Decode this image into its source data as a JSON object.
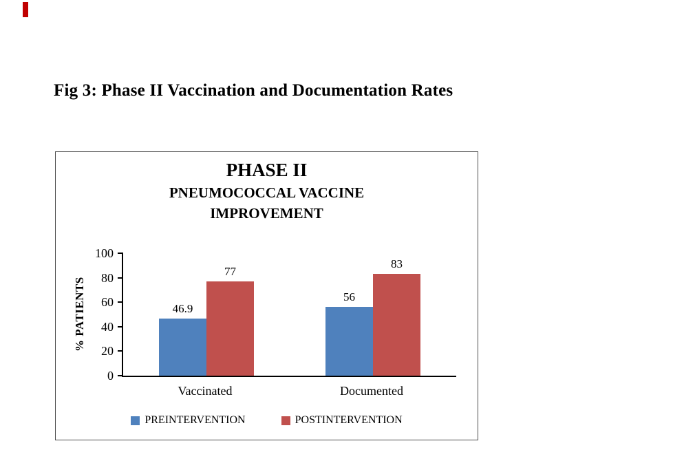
{
  "page": {
    "figure_caption": "Fig 3: Phase II Vaccination and Documentation Rates",
    "corner_mark_color": "#c00000"
  },
  "chart_data": {
    "type": "bar",
    "title_lines": [
      "PHASE II",
      "PNEUMOCOCCAL VACCINE",
      "IMPROVEMENT"
    ],
    "categories": [
      "Vaccinated",
      "Documented"
    ],
    "series": [
      {
        "name": "PREINTERVENTION",
        "color": "#4f81bd",
        "values": [
          46.9,
          56
        ]
      },
      {
        "name": "POSTINTERVENTION",
        "color": "#c0504d",
        "values": [
          77,
          83
        ]
      }
    ],
    "xlabel": "",
    "ylabel": "% PATIENTS",
    "ylim": [
      0,
      100
    ],
    "yticks": [
      0,
      20,
      40,
      60,
      80,
      100
    ],
    "grid": false,
    "legend_position": "bottom",
    "data_labels": true
  }
}
